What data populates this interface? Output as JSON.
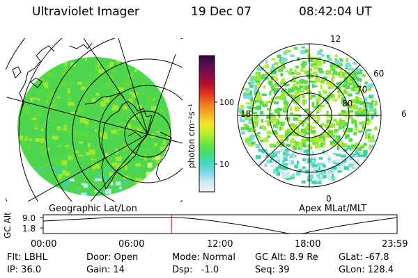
{
  "header": {
    "instrument": "Ultraviolet Imager",
    "date": "19 Dec 07",
    "time": "08:42:04 UT"
  },
  "colorbar": {
    "unit_label": "photon cm⁻²s⁻¹",
    "ticks": [
      "100",
      "10"
    ],
    "tick_values": [
      100,
      10
    ],
    "scale": "log",
    "stops": [
      "#f2f2f2",
      "#cfe9ee",
      "#74d9e3",
      "#3fd8c2",
      "#43dd6c",
      "#6fe63a",
      "#b8ee2e",
      "#f0e62a",
      "#f6b026",
      "#f07a22",
      "#e2381e",
      "#b80f2e",
      "#8a0c48",
      "#5b0d55",
      "#2b073b"
    ]
  },
  "geo_map": {
    "label": "Geographic Lat/Lon",
    "glow_colors": [
      "#4ed64e",
      "#62db36",
      "#9ee82e",
      "#c9ee8c",
      "#3ad1a4",
      "#bfe3ee"
    ]
  },
  "apex_map": {
    "label": "Apex MLat/MLT",
    "mlt_labels": {
      "top": "12",
      "left": "18",
      "right": "6",
      "bottom": "0"
    },
    "lat_labels": [
      "60",
      "70",
      "80"
    ]
  },
  "timeline": {
    "axis_title": "GC Alt",
    "y_ticks": [
      "9.0",
      "1.8"
    ],
    "y_max": 9.0,
    "y_min": 1.8,
    "x_ticks": [
      "00:00",
      "06:00",
      "12:00",
      "18:00",
      "23:59"
    ],
    "current_time_hours": 8.7,
    "orbit": {
      "apogee_hours": [
        4.5,
        9.0
      ],
      "perigee_hour": 17.3
    },
    "marker_color": "#d01010"
  },
  "status": {
    "flt": "Flt: LBHL",
    "door": "Door: Open",
    "mode": "Mode: Normal",
    "gc_alt": "GC Alt: 8.9 Re",
    "glat": "GLat: -67.8",
    "ip": "IP: 36.0",
    "gain": "Gain: 14",
    "dsp": "Dsp:   -1.0",
    "seq": "Seq: 39",
    "glon": "GLon: 128.4"
  }
}
